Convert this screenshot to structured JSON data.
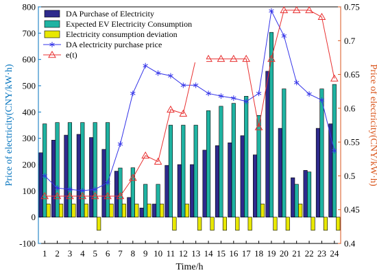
{
  "chart_data": {
    "type": "bar",
    "xlabel": "Time/h",
    "ylabel_left": "Price of electricity(CNY/kW·h)",
    "ylabel_right": "Price of electricity(CNY/kW·h)",
    "left_ylim": [
      -100,
      800
    ],
    "right_ylim": [
      0.4,
      0.75
    ],
    "left_yticks": [
      -100,
      0,
      100,
      200,
      300,
      400,
      500,
      600,
      700,
      800
    ],
    "right_yticks": [
      0.4,
      0.45,
      0.5,
      0.55,
      0.6,
      0.65,
      0.7,
      0.75
    ],
    "left_ytick_labels": [
      "-100",
      "0",
      "100",
      "200",
      "300",
      "400",
      "500",
      "600",
      "700",
      "800"
    ],
    "right_ytick_labels": [
      "0.4",
      "0.45",
      "0.5",
      "0.55",
      "0.6",
      "0.65",
      "0.7",
      "0.75"
    ],
    "categories": [
      "1",
      "2",
      "3",
      "4",
      "5",
      "6",
      "7",
      "8",
      "9",
      "10",
      "11",
      "12",
      "13",
      "14",
      "15",
      "16",
      "17",
      "18",
      "19",
      "20",
      "21",
      "22",
      "23",
      "24"
    ],
    "legend_position": "top-left",
    "colors": {
      "left_axis": "#0072BD",
      "right_axis": "#D95319",
      "da_bar": "#2E2A8C",
      "ev_bar": "#1FB3A2",
      "dev_bar": "#E8E800",
      "price_line": "#3333E8",
      "et_line": "#E83030"
    },
    "series": [
      {
        "name": "DA Purchase of Electricity",
        "kind": "bar",
        "axis": "left",
        "values": [
          245,
          293,
          312,
          315,
          303,
          258,
          175,
          75,
          35,
          50,
          197,
          200,
          200,
          255,
          272,
          283,
          310,
          237,
          555,
          338,
          150,
          178,
          338,
          355
        ]
      },
      {
        "name": "Expected EV Electricity Consumption",
        "kind": "bar",
        "axis": "left",
        "values": [
          355,
          360,
          360,
          360,
          360,
          360,
          187,
          188,
          125,
          125,
          350,
          350,
          350,
          405,
          422,
          433,
          460,
          387,
          703,
          488,
          125,
          172,
          488,
          505
        ]
      },
      {
        "name": "Electricity consumption deviation",
        "kind": "bar",
        "axis": "left",
        "values": [
          50,
          50,
          50,
          50,
          -50,
          50,
          50,
          50,
          50,
          50,
          -50,
          50,
          -50,
          -50,
          -50,
          -50,
          -50,
          50,
          -50,
          -50,
          50,
          -50,
          -50,
          -50
        ]
      },
      {
        "name": "DA electricity purchase price",
        "kind": "line",
        "axis": "right",
        "marker": "asterisk",
        "values": [
          0.5,
          0.482,
          0.48,
          0.478,
          0.48,
          0.49,
          0.547,
          0.622,
          0.663,
          0.652,
          0.648,
          0.634,
          0.634,
          0.622,
          0.618,
          0.615,
          0.61,
          0.622,
          0.744,
          0.707,
          0.638,
          0.621,
          0.612,
          0.537
        ]
      },
      {
        "name": "e(t)",
        "kind": "line",
        "axis": "right",
        "marker": "triangle",
        "values": [
          0.47,
          0.47,
          0.47,
          0.47,
          0.47,
          0.47,
          0.47,
          0.497,
          0.53,
          0.521,
          0.598,
          0.592,
          0.673,
          0.673,
          0.673,
          0.673,
          0.673,
          0.572,
          0.673,
          0.745,
          0.745,
          0.745,
          0.735,
          0.644
        ]
      }
    ]
  }
}
